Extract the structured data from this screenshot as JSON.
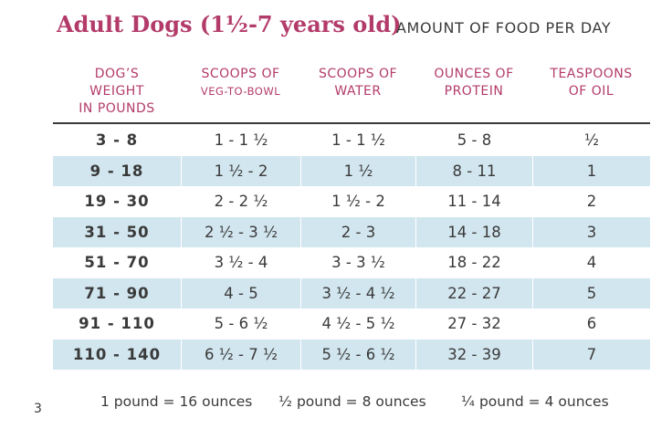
{
  "title": "Adult Dogs (1½-7 years old)",
  "subtitle": "AMOUNT OF FOOD PER DAY",
  "headers": {
    "weight": [
      "DOG’S",
      "WEIGHT",
      "IN POUNDS"
    ],
    "scoops_veg": [
      "SCOOPS OF",
      "VEG-TO-BOWL"
    ],
    "scoops_water": [
      "SCOOPS OF",
      "WATER"
    ],
    "protein": [
      "OUNCES OF",
      "PROTEIN"
    ],
    "oil": [
      "TEASPOONS",
      "OF OIL"
    ]
  },
  "rows": [
    {
      "weight": "3 - 8",
      "veg": "1 - 1 ½",
      "water": "1 - 1 ½",
      "protein": "5 - 8",
      "oil": "½"
    },
    {
      "weight": "9 - 18",
      "veg": "1 ½ - 2",
      "water": "1 ½",
      "protein": "8 - 11",
      "oil": "1"
    },
    {
      "weight": "19 - 30",
      "veg": "2 - 2 ½",
      "water": "1 ½ - 2",
      "protein": "11 - 14",
      "oil": "2"
    },
    {
      "weight": "31 - 50",
      "veg": "2 ½ - 3 ½",
      "water": "2 - 3",
      "protein": "14 - 18",
      "oil": "3"
    },
    {
      "weight": "51 - 70",
      "veg": "3 ½ - 4",
      "water": "3 - 3 ½",
      "protein": "18 - 22",
      "oil": "4"
    },
    {
      "weight": "71 - 90",
      "veg": "4 - 5",
      "water": "3 ½ - 4 ½",
      "protein": "22 - 27",
      "oil": "5"
    },
    {
      "weight": "91 - 110",
      "veg": "5 - 6 ½",
      "water": "4 ½ - 5 ½",
      "protein": "27 - 32",
      "oil": "6"
    },
    {
      "weight": "110 - 140",
      "veg": "6 ½ - 7 ½",
      "water": "5 ½ - 6 ½",
      "protein": "32 - 39",
      "oil": "7"
    }
  ],
  "page_number": "3",
  "footer": [
    "1 pound = 16 ounces",
    "½ pound = 8 ounces",
    "¼ pound = 4 ounces"
  ],
  "colors": {
    "accent": "#b33b6a",
    "row_shade": "#d2e6ef",
    "text": "#3a3a3a"
  }
}
